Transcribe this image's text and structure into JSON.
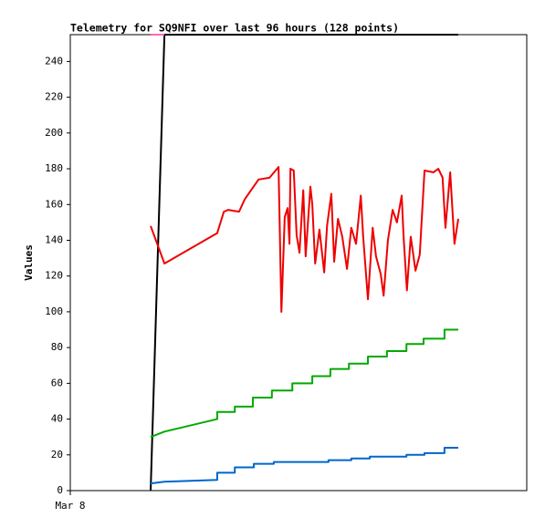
{
  "chart_data": {
    "type": "line",
    "title": "Telemetry for SQ9NFI over last 96 hours (128 points)",
    "y_label": "Values",
    "xlim": [
      0,
      96
    ],
    "xticks": [
      {
        "value": 0,
        "label": "Mar 8"
      }
    ],
    "ylim": [
      0,
      255
    ],
    "yticks": [
      0,
      20,
      40,
      60,
      80,
      100,
      120,
      140,
      160,
      180,
      200,
      220,
      240
    ],
    "grid": false,
    "series": [
      {
        "color": "#000000",
        "x": [
          16.9,
          19.8,
          81.6
        ],
        "values": [
          0,
          255,
          255
        ]
      },
      {
        "color": "#ff69b4",
        "x": [
          16.9,
          19.8
        ],
        "values": [
          255,
          255
        ]
      },
      {
        "color": "#ee0000",
        "x": [
          16.9,
          19.8,
          30.9,
          32.3,
          33.2,
          35.5,
          36.7,
          39.6,
          41.9,
          43.8,
          44.4,
          45.1,
          45.7,
          46.1,
          46.3,
          47.0,
          47.6,
          48.2,
          49.0,
          49.5,
          50.5,
          50.9,
          51.5,
          52.4,
          53.4,
          54.0,
          54.9,
          55.5,
          56.3,
          57.2,
          58.2,
          59.1,
          60.1,
          61.1,
          61.6,
          62.6,
          63.6,
          64.3,
          65.3,
          65.9,
          66.8,
          67.8,
          68.7,
          69.7,
          70.1,
          70.8,
          71.6,
          72.6,
          73.5,
          74.5,
          76.4,
          77.4,
          78.3,
          78.9,
          79.9,
          80.8,
          81.6
        ],
        "values": [
          148,
          127,
          144,
          156,
          157,
          156,
          163,
          174,
          175,
          181,
          100,
          153,
          158,
          138,
          180,
          179,
          143,
          133,
          168,
          131,
          170,
          160,
          127,
          146,
          122,
          148,
          166,
          128,
          152,
          142,
          124,
          147,
          138,
          165,
          142,
          107,
          147,
          131,
          121,
          109,
          140,
          157,
          150,
          165,
          142,
          112,
          142,
          123,
          132,
          179,
          178,
          180,
          175,
          147,
          178,
          138,
          152
        ]
      },
      {
        "color": "#00aa00",
        "x": [
          16.9,
          19.8,
          30.9,
          30.9,
          34.6,
          34.6,
          38.4,
          38.4,
          42.4,
          42.4,
          46.7,
          46.7,
          50.9,
          50.9,
          54.7,
          54.7,
          58.6,
          58.6,
          62.6,
          62.6,
          66.6,
          66.6,
          70.7,
          70.7,
          74.3,
          74.3,
          78.7,
          78.7,
          81.6
        ],
        "values": [
          30,
          33,
          40,
          44,
          44,
          47,
          47,
          52,
          52,
          56,
          56,
          60,
          60,
          64,
          64,
          68,
          68,
          71,
          71,
          75,
          75,
          78,
          78,
          82,
          82,
          85,
          85,
          90,
          90
        ]
      },
      {
        "color": "#0066cc",
        "x": [
          16.9,
          19.8,
          30.9,
          30.9,
          34.6,
          34.6,
          38.6,
          38.6,
          42.8,
          42.8,
          54.3,
          54.3,
          59.1,
          59.1,
          63.0,
          63.0,
          70.7,
          70.7,
          74.5,
          74.5,
          78.7,
          78.7,
          81.6
        ],
        "values": [
          4,
          5,
          6,
          10,
          10,
          13,
          13,
          15,
          15,
          16,
          16,
          17,
          17,
          18,
          18,
          19,
          19,
          20,
          20,
          21,
          21,
          24,
          24
        ]
      }
    ]
  }
}
